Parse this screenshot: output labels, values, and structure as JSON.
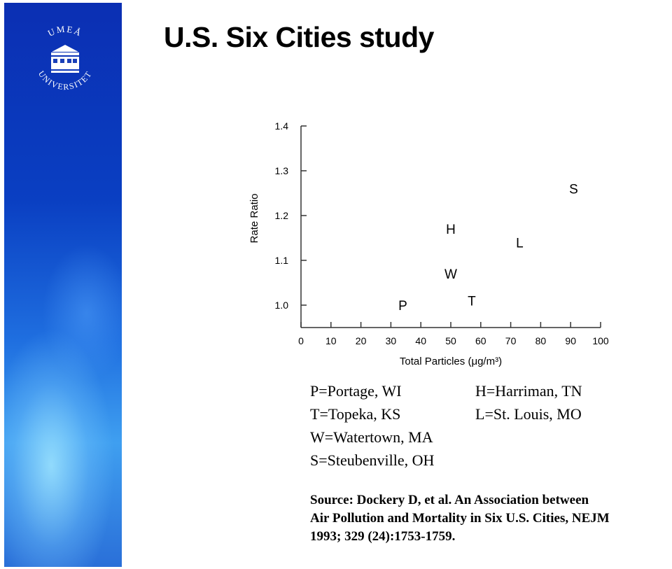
{
  "slide": {
    "title": "U.S. Six Cities study",
    "logo_text": "UMEÅ UNIVERSITET"
  },
  "legend": {
    "p": "P=Portage, WI",
    "t": "T=Topeka, KS",
    "w": "W=Watertown, MA",
    "s": "S=Steubenville, OH",
    "h": "H=Harriman, TN",
    "l": "L=St. Louis, MO"
  },
  "source": {
    "line1": "Source: Dockery D, et al. An Association between",
    "line2": "Air Pollution and Mortality in Six U.S. Cities, NEJM",
    "line3": "1993; 329 (24):1753-1759."
  },
  "colors": {
    "sidebar_top": "#0b2fb3",
    "sidebar_bottom": "#3f9ff0",
    "text": "#000000"
  },
  "chart_data": {
    "type": "scatter",
    "xlabel": "Total Particles (μg/m³)",
    "ylabel": "Rate Ratio",
    "xlim": [
      0,
      100
    ],
    "ylim": [
      0.95,
      1.4
    ],
    "xticks": [
      0,
      10,
      20,
      30,
      40,
      50,
      60,
      70,
      80,
      90,
      100
    ],
    "yticks": [
      1.0,
      1.1,
      1.2,
      1.3,
      1.4
    ],
    "ytick_labels": [
      "1.0",
      "1.1",
      "1.2",
      "1.3",
      "1.4"
    ],
    "points": [
      {
        "label": "P",
        "x": 34,
        "y": 1.0
      },
      {
        "label": "T",
        "x": 57,
        "y": 1.01
      },
      {
        "label": "W",
        "x": 50,
        "y": 1.07
      },
      {
        "label": "H",
        "x": 50,
        "y": 1.17
      },
      {
        "label": "L",
        "x": 73,
        "y": 1.14
      },
      {
        "label": "S",
        "x": 91,
        "y": 1.26
      }
    ]
  }
}
